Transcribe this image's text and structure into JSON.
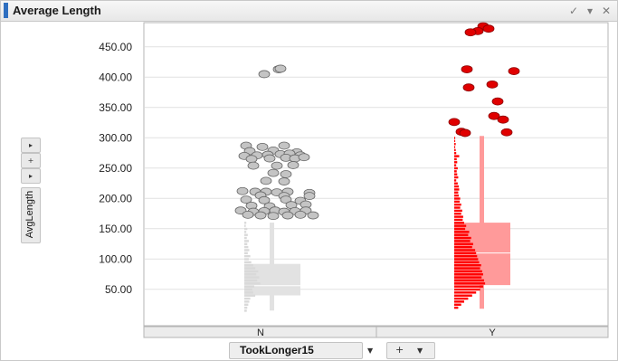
{
  "window": {
    "title": "Average Length",
    "accent_color": "#2f6fc0",
    "controls": {
      "check_icon": "check-icon",
      "menu_icon": "chevron-down-icon",
      "close_icon": "close-icon"
    }
  },
  "y_axis_control": {
    "label": "AvgLength",
    "arrow_glyph": "▸",
    "plus_glyph": "+",
    "dropdown_glyph": "▸"
  },
  "x_axis_control": {
    "label": "TookLonger15",
    "dropdown_glyph": "▼",
    "plus_glyph": "+"
  },
  "chart_data": {
    "type": "scatter",
    "xlabel": "TookLonger15",
    "ylabel": "AvgLength",
    "categories": [
      "N",
      "Y"
    ],
    "y_ticks": [
      "450.00",
      "400.00",
      "350.00",
      "300.00",
      "250.00",
      "200.00",
      "150.00",
      "100.00",
      "50.00"
    ],
    "y_tick_values": [
      450,
      400,
      350,
      300,
      250,
      200,
      150,
      100,
      50
    ],
    "ylim": [
      -10,
      490
    ],
    "grid": true,
    "series": [
      {
        "category": "N",
        "point_color": "#c4c4c4",
        "hist_color": "#d9d9d9",
        "box_color": "#e2e2e2",
        "outliers": [
          [
            -8,
            405
          ],
          [
            8,
            413
          ],
          [
            10,
            414
          ],
          [
            -28,
            287
          ],
          [
            -10,
            285
          ],
          [
            14,
            287
          ],
          [
            -24,
            278
          ],
          [
            2,
            279
          ],
          [
            28,
            276
          ],
          [
            -30,
            270
          ],
          [
            -16,
            271
          ],
          [
            -4,
            272
          ],
          [
            10,
            273
          ],
          [
            20,
            274
          ],
          [
            32,
            271
          ],
          [
            -22,
            265
          ],
          [
            -2,
            266
          ],
          [
            16,
            267
          ],
          [
            26,
            266
          ],
          [
            36,
            268
          ],
          [
            -20,
            254
          ],
          [
            6,
            254
          ],
          [
            24,
            255
          ],
          [
            2,
            242
          ],
          [
            16,
            240
          ],
          [
            -6,
            229
          ],
          [
            14,
            228
          ],
          [
            -32,
            212
          ],
          [
            -18,
            211
          ],
          [
            -6,
            211
          ],
          [
            6,
            210
          ],
          [
            18,
            211
          ],
          [
            42,
            209
          ],
          [
            -12,
            205
          ],
          [
            14,
            204
          ],
          [
            42,
            204
          ],
          [
            -28,
            198
          ],
          [
            -8,
            197
          ],
          [
            16,
            198
          ],
          [
            32,
            196
          ],
          [
            -22,
            188
          ],
          [
            -2,
            187
          ],
          [
            22,
            189
          ],
          [
            38,
            190
          ],
          [
            -34,
            180
          ],
          [
            -20,
            178
          ],
          [
            -8,
            179
          ],
          [
            4,
            180
          ],
          [
            14,
            178
          ],
          [
            26,
            179
          ],
          [
            38,
            180
          ],
          [
            -26,
            173
          ],
          [
            -12,
            172
          ],
          [
            2,
            171
          ],
          [
            18,
            172
          ],
          [
            32,
            173
          ],
          [
            46,
            172
          ]
        ],
        "box": {
          "q1": 40,
          "median": 56,
          "q3": 92,
          "min": 15,
          "max": 160
        },
        "histogram": [
          [
            160,
            4
          ],
          [
            155,
            3
          ],
          [
            150,
            6
          ],
          [
            145,
            4
          ],
          [
            140,
            7
          ],
          [
            135,
            5
          ],
          [
            130,
            9
          ],
          [
            125,
            6
          ],
          [
            120,
            8
          ],
          [
            115,
            10
          ],
          [
            110,
            7
          ],
          [
            105,
            12
          ],
          [
            100,
            9
          ],
          [
            95,
            14
          ],
          [
            90,
            18
          ],
          [
            85,
            22
          ],
          [
            80,
            28
          ],
          [
            75,
            24
          ],
          [
            70,
            30
          ],
          [
            65,
            26
          ],
          [
            60,
            32
          ],
          [
            55,
            20
          ],
          [
            50,
            16
          ],
          [
            45,
            18
          ],
          [
            40,
            22
          ],
          [
            35,
            12
          ],
          [
            30,
            10
          ],
          [
            25,
            8
          ],
          [
            20,
            6
          ],
          [
            15,
            5
          ]
        ]
      },
      {
        "category": "Y",
        "point_color": "#e00000",
        "hist_color": "#ff0000",
        "box_color": "#ff9a9a",
        "outliers": [
          [
            2,
            484
          ],
          [
            8,
            480
          ],
          [
            -4,
            476
          ],
          [
            -12,
            474
          ],
          [
            -16,
            413
          ],
          [
            36,
            410
          ],
          [
            -14,
            383
          ],
          [
            12,
            388
          ],
          [
            18,
            360
          ],
          [
            -30,
            326
          ],
          [
            14,
            336
          ],
          [
            24,
            330
          ],
          [
            -22,
            310
          ],
          [
            -18,
            308
          ],
          [
            28,
            309
          ]
        ],
        "box": {
          "q1": 57,
          "median": 110,
          "q3": 160,
          "min": 18,
          "max": 303
        },
        "histogram": [
          [
            300,
            2
          ],
          [
            295,
            2
          ],
          [
            290,
            3
          ],
          [
            285,
            2
          ],
          [
            280,
            3
          ],
          [
            275,
            4
          ],
          [
            270,
            10
          ],
          [
            265,
            5
          ],
          [
            260,
            6
          ],
          [
            255,
            4
          ],
          [
            250,
            7
          ],
          [
            245,
            5
          ],
          [
            240,
            6
          ],
          [
            235,
            8
          ],
          [
            230,
            4
          ],
          [
            225,
            7
          ],
          [
            220,
            9
          ],
          [
            215,
            10
          ],
          [
            210,
            8
          ],
          [
            205,
            9
          ],
          [
            200,
            12
          ],
          [
            195,
            11
          ],
          [
            190,
            14
          ],
          [
            185,
            12
          ],
          [
            180,
            16
          ],
          [
            175,
            14
          ],
          [
            170,
            18
          ],
          [
            165,
            17
          ],
          [
            160,
            20
          ],
          [
            155,
            24
          ],
          [
            150,
            22
          ],
          [
            145,
            30
          ],
          [
            140,
            28
          ],
          [
            135,
            34
          ],
          [
            130,
            32
          ],
          [
            125,
            38
          ],
          [
            120,
            36
          ],
          [
            115,
            42
          ],
          [
            110,
            44
          ],
          [
            105,
            46
          ],
          [
            100,
            48
          ],
          [
            95,
            50
          ],
          [
            90,
            54
          ],
          [
            85,
            52
          ],
          [
            80,
            56
          ],
          [
            75,
            58
          ],
          [
            70,
            55
          ],
          [
            65,
            60
          ],
          [
            60,
            62
          ],
          [
            55,
            58
          ],
          [
            50,
            52
          ],
          [
            45,
            44
          ],
          [
            40,
            36
          ],
          [
            35,
            28
          ],
          [
            30,
            20
          ],
          [
            25,
            14
          ],
          [
            20,
            8
          ]
        ]
      }
    ]
  }
}
